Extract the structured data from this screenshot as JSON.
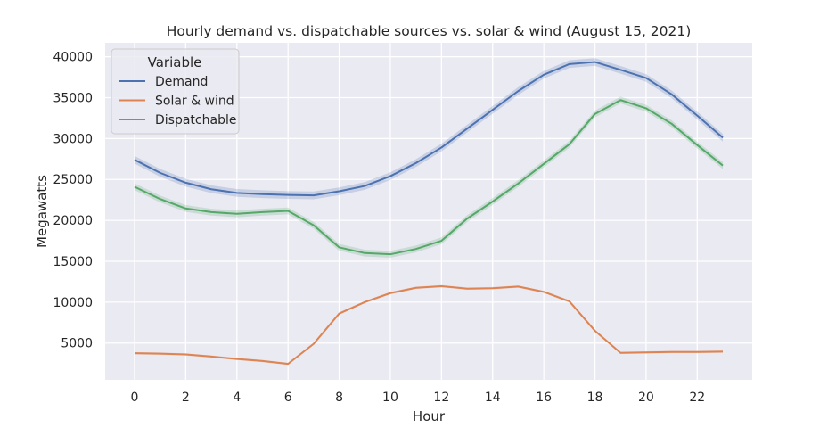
{
  "chart_data": {
    "type": "line",
    "title": "Hourly demand vs. dispatchable sources vs. solar & wind (August 15, 2021)",
    "xlabel": "Hour",
    "ylabel": "Megawatts",
    "xlim": [
      -1.15,
      24.15
    ],
    "ylim": [
      500,
      41700
    ],
    "xticks": [
      0,
      2,
      4,
      6,
      8,
      10,
      12,
      14,
      16,
      18,
      20,
      22
    ],
    "yticks": [
      5000,
      10000,
      15000,
      20000,
      25000,
      30000,
      35000,
      40000
    ],
    "grid": true,
    "legend": {
      "title": "Variable",
      "position": "upper-left"
    },
    "x": [
      0,
      1,
      2,
      3,
      4,
      5,
      6,
      7,
      8,
      9,
      10,
      11,
      12,
      13,
      14,
      15,
      16,
      17,
      18,
      19,
      20,
      21,
      22,
      23
    ],
    "series": [
      {
        "name": "Demand",
        "color": "#4c72b0",
        "values": [
          27400,
          25800,
          24600,
          23800,
          23350,
          23200,
          23100,
          23050,
          23550,
          24200,
          25400,
          27000,
          28900,
          31200,
          33500,
          35800,
          37800,
          39100,
          39350,
          38400,
          37400,
          35400,
          32800,
          30100
        ]
      },
      {
        "name": "Solar & wind",
        "color": "#dd8452",
        "values": [
          3750,
          3700,
          3600,
          3350,
          3050,
          2800,
          2450,
          4900,
          8600,
          10000,
          11100,
          11750,
          11950,
          11650,
          11700,
          11900,
          11250,
          10100,
          6500,
          3800,
          3850,
          3900,
          3900,
          3950
        ]
      },
      {
        "name": "Dispatchable",
        "color": "#55a868",
        "values": [
          24100,
          22600,
          21450,
          21000,
          20800,
          21000,
          21150,
          19400,
          16700,
          16000,
          15850,
          16500,
          17500,
          20200,
          22300,
          24500,
          26900,
          29300,
          33000,
          34700,
          33700,
          31800,
          29200,
          26700
        ]
      }
    ]
  }
}
